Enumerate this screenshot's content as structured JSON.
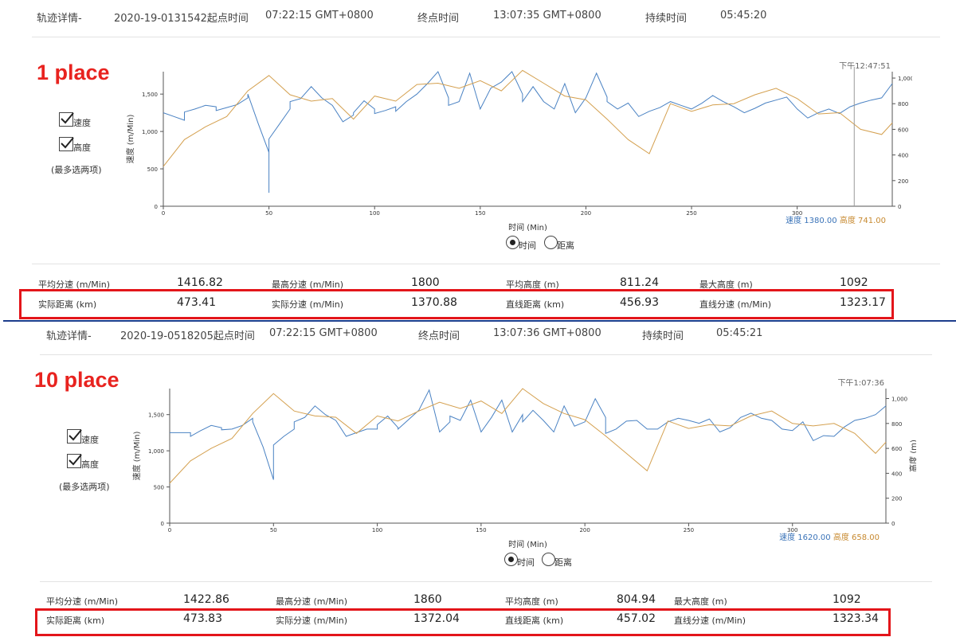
{
  "panels": [
    {
      "header": {
        "track_label": "轨迹详情-",
        "track_id": "2020-19-0131542起点时间",
        "start_time": "07:22:15 GMT+0800",
        "end_label": "终点时间",
        "end_time": "13:07:35 GMT+0800",
        "duration_label": "持续时间",
        "duration": "05:45:20"
      },
      "place_label": "1 place",
      "checkbox_speed": "速度",
      "checkbox_altitude": "高度",
      "select_note": "(最多选两项)",
      "cursor_time": "下午12:47:51",
      "readout_speed": "速度 1380.00",
      "readout_altitude": "高度 741.00",
      "radio_time": "时间",
      "radio_distance": "距离",
      "stats_row1": [
        {
          "label": "平均分速 (m/Min)",
          "value": "1416.82"
        },
        {
          "label": "最高分速 (m/Min)",
          "value": "1800"
        },
        {
          "label": "平均高度 (m)",
          "value": "811.24"
        },
        {
          "label": "最大高度 (m)",
          "value": "1092"
        }
      ],
      "stats_row2": [
        {
          "label": "实际距离 (km)",
          "value": "473.41"
        },
        {
          "label": "实际分速 (m/Min)",
          "value": "1370.88"
        },
        {
          "label": "直线距离 (km)",
          "value": "456.93"
        },
        {
          "label": "直线分速 (m/Min)",
          "value": "1323.17"
        }
      ]
    },
    {
      "header": {
        "track_label": "轨迹详情-",
        "track_id": "2020-19-0518205起点时间",
        "start_time": "07:22:15 GMT+0800",
        "end_label": "终点时间",
        "end_time": "13:07:36 GMT+0800",
        "duration_label": "持续时间",
        "duration": "05:45:21"
      },
      "place_label": "10 place",
      "checkbox_speed": "速度",
      "checkbox_altitude": "高度",
      "select_note": "(最多选两项)",
      "cursor_time": "下午1:07:36",
      "readout_speed": "速度 1620.00",
      "readout_altitude": "高度 658.00",
      "radio_time": "时间",
      "radio_distance": "距离",
      "stats_row1": [
        {
          "label": "平均分速 (m/Min)",
          "value": "1422.86"
        },
        {
          "label": "最高分速 (m/Min)",
          "value": "1860"
        },
        {
          "label": "平均高度 (m)",
          "value": "804.94"
        },
        {
          "label": "最大高度 (m)",
          "value": "1092"
        }
      ],
      "stats_row2": [
        {
          "label": "实际距离 (km)",
          "value": "473.83"
        },
        {
          "label": "实际分速 (m/Min)",
          "value": "1372.04"
        },
        {
          "label": "直线距离 (km)",
          "value": "457.02"
        },
        {
          "label": "直线分速 (m/Min)",
          "value": "1323.34"
        }
      ]
    }
  ],
  "colors": {
    "speed": "#4a82c3",
    "altitude": "#d4a04f",
    "readout_speed": "#3a73b8",
    "readout_altitude": "#c7892f"
  },
  "chart_data": [
    {
      "type": "line",
      "xlabel": "时间 (Min)",
      "ylabel": "速度 (m/Min)",
      "y2label": "高度 (m)",
      "xlim": [
        0,
        345
      ],
      "ylim": [
        0,
        1800
      ],
      "y2lim": [
        0,
        1050
      ],
      "x_ticks": [
        0,
        50,
        100,
        150,
        200,
        250,
        300
      ],
      "y_ticks": [
        0,
        500,
        1000,
        1500
      ],
      "y_tick_labels": [
        "0",
        "500",
        "1,000",
        "1,500"
      ],
      "y2_ticks": [
        0,
        200,
        400,
        600,
        800,
        1000
      ],
      "y2_tick_labels": [
        "0",
        "200",
        "400",
        "600",
        "800",
        "1,000"
      ],
      "cursor_x": 327,
      "series": [
        {
          "name": "速度",
          "axis": "left",
          "x": [
            0,
            5,
            10,
            10,
            15,
            20,
            25,
            25,
            30,
            35,
            40,
            40,
            45,
            50,
            50,
            50,
            55,
            60,
            60,
            65,
            70,
            75,
            80,
            85,
            90,
            90,
            95,
            100,
            100,
            105,
            110,
            110,
            115,
            120,
            125,
            130,
            135,
            135,
            140,
            145,
            150,
            155,
            160,
            165,
            170,
            170,
            175,
            180,
            185,
            190,
            195,
            200,
            205,
            210,
            210,
            215,
            220,
            225,
            230,
            235,
            240,
            245,
            250,
            255,
            260,
            265,
            270,
            275,
            280,
            285,
            290,
            295,
            300,
            305,
            310,
            315,
            320,
            325,
            330,
            335,
            340,
            345
          ],
          "y": [
            1250,
            1200,
            1150,
            1260,
            1300,
            1350,
            1330,
            1280,
            1320,
            1360,
            1450,
            1500,
            1100,
            720,
            180,
            900,
            1100,
            1300,
            1400,
            1440,
            1600,
            1450,
            1350,
            1130,
            1220,
            1250,
            1410,
            1300,
            1240,
            1280,
            1330,
            1270,
            1400,
            1500,
            1640,
            1800,
            1450,
            1350,
            1400,
            1780,
            1300,
            1580,
            1660,
            1800,
            1500,
            1400,
            1600,
            1400,
            1300,
            1640,
            1250,
            1450,
            1780,
            1460,
            1400,
            1300,
            1380,
            1200,
            1270,
            1320,
            1400,
            1350,
            1300,
            1380,
            1480,
            1400,
            1330,
            1250,
            1310,
            1380,
            1420,
            1460,
            1300,
            1180,
            1250,
            1300,
            1240,
            1330,
            1380,
            1420,
            1450,
            1640
          ]
        },
        {
          "name": "高度",
          "axis": "right",
          "x": [
            0,
            10,
            20,
            30,
            40,
            50,
            60,
            70,
            80,
            90,
            100,
            110,
            120,
            130,
            140,
            150,
            160,
            170,
            180,
            190,
            200,
            210,
            220,
            230,
            240,
            250,
            260,
            270,
            280,
            290,
            300,
            310,
            320,
            330,
            340,
            345
          ],
          "y": [
            310,
            520,
            620,
            700,
            900,
            1020,
            870,
            820,
            840,
            680,
            860,
            820,
            950,
            960,
            920,
            980,
            900,
            1060,
            960,
            860,
            830,
            680,
            520,
            410,
            800,
            740,
            790,
            800,
            870,
            920,
            840,
            720,
            730,
            600,
            560,
            650
          ]
        }
      ]
    },
    {
      "type": "line",
      "xlabel": "时间 (Min)",
      "ylabel": "速度 (m/Min)",
      "y2label": "高度 (m)",
      "xlim": [
        0,
        345
      ],
      "ylim": [
        0,
        1860
      ],
      "y2lim": [
        0,
        1080
      ],
      "x_ticks": [
        0,
        50,
        100,
        150,
        200,
        250,
        300
      ],
      "y_ticks": [
        0,
        500,
        1000,
        1500
      ],
      "y_tick_labels": [
        "0",
        "500",
        "1,000",
        "1,500"
      ],
      "y2_ticks": [
        0,
        200,
        400,
        600,
        800,
        1000
      ],
      "y2_tick_labels": [
        "0",
        "200",
        "400",
        "600",
        "800",
        "1,000"
      ],
      "cursor_x": null,
      "series": [
        {
          "name": "速度",
          "axis": "left",
          "x": [
            0,
            5,
            10,
            10,
            15,
            20,
            25,
            25,
            30,
            35,
            40,
            40,
            45,
            50,
            50,
            55,
            60,
            60,
            65,
            70,
            75,
            80,
            85,
            90,
            95,
            100,
            100,
            105,
            110,
            110,
            115,
            120,
            125,
            130,
            135,
            135,
            140,
            145,
            150,
            155,
            160,
            165,
            170,
            170,
            175,
            180,
            185,
            190,
            195,
            200,
            205,
            210,
            210,
            215,
            220,
            225,
            230,
            235,
            240,
            245,
            250,
            255,
            260,
            265,
            270,
            275,
            280,
            285,
            290,
            295,
            300,
            305,
            310,
            315,
            320,
            325,
            330,
            335,
            340,
            345
          ],
          "y": [
            1250,
            1250,
            1250,
            1200,
            1280,
            1350,
            1320,
            1290,
            1300,
            1350,
            1450,
            1400,
            1050,
            600,
            1080,
            1200,
            1300,
            1400,
            1460,
            1620,
            1500,
            1420,
            1200,
            1250,
            1300,
            1300,
            1360,
            1480,
            1320,
            1300,
            1430,
            1560,
            1840,
            1260,
            1400,
            1480,
            1420,
            1700,
            1260,
            1460,
            1700,
            1260,
            1500,
            1400,
            1560,
            1420,
            1260,
            1620,
            1340,
            1400,
            1720,
            1460,
            1240,
            1300,
            1410,
            1420,
            1300,
            1300,
            1400,
            1450,
            1420,
            1380,
            1440,
            1260,
            1320,
            1460,
            1520,
            1450,
            1420,
            1300,
            1280,
            1400,
            1140,
            1210,
            1200,
            1330,
            1420,
            1450,
            1500,
            1620
          ]
        },
        {
          "name": "高度",
          "axis": "right",
          "x": [
            0,
            10,
            20,
            30,
            40,
            50,
            60,
            70,
            80,
            90,
            100,
            110,
            120,
            130,
            140,
            150,
            160,
            170,
            180,
            190,
            200,
            210,
            220,
            230,
            240,
            250,
            260,
            270,
            280,
            290,
            300,
            310,
            320,
            330,
            340,
            345
          ],
          "y": [
            320,
            500,
            600,
            680,
            880,
            1040,
            900,
            860,
            850,
            720,
            860,
            820,
            900,
            970,
            920,
            980,
            880,
            1080,
            960,
            880,
            830,
            700,
            560,
            420,
            820,
            760,
            790,
            780,
            860,
            900,
            800,
            780,
            800,
            720,
            560,
            650
          ]
        }
      ]
    }
  ]
}
